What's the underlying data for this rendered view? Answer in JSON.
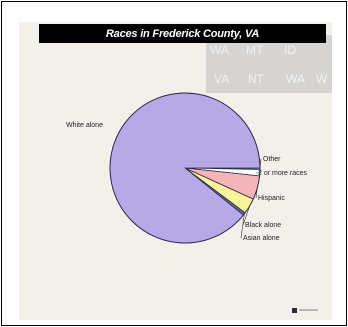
{
  "chart_data": {
    "type": "pie",
    "title": "Races in Frederick County, VA",
    "slices": [
      {
        "label": "White alone",
        "value": 89.2,
        "color": "#b7a8e8"
      },
      {
        "label": "Asian alone",
        "value": 0.6,
        "color": "#5a6a9a"
      },
      {
        "label": "Black alone",
        "value": 3.4,
        "color": "#f7f49a"
      },
      {
        "label": "Hispanic",
        "value": 5.1,
        "color": "#f4b4b8"
      },
      {
        "label": "2 or more races",
        "value": 1.4,
        "color": "#ffffff"
      },
      {
        "label": "Other",
        "value": 0.3,
        "color": "#7aa6c4"
      }
    ],
    "start": "3 o'clock",
    "direction": "clockwise-from-other",
    "legend": "none"
  },
  "state_abbreviations": [
    "WA",
    "MT",
    "ID",
    "VA",
    "NT",
    "WA",
    "W"
  ],
  "colors": {
    "frame": "#000000",
    "panel": "#f3f0ec",
    "title_bar": "#000000",
    "title_text": "#ffffff"
  }
}
